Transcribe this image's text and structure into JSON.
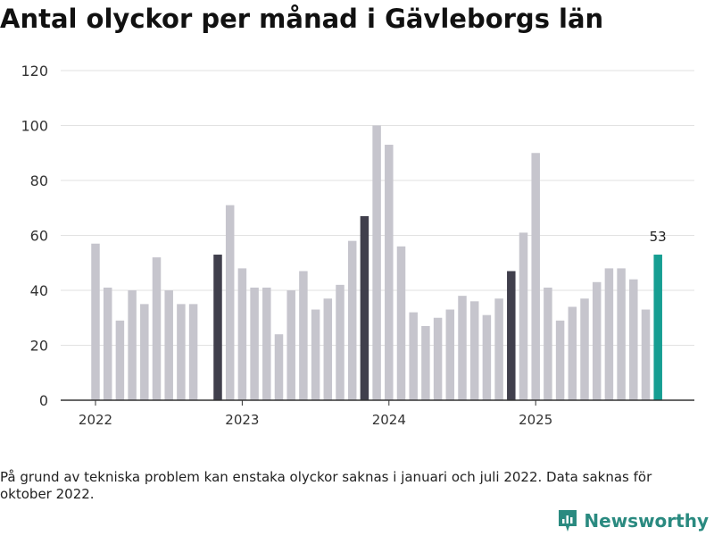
{
  "title": "Antal olyckor per månad i Gävleborgs län",
  "note": "På grund av tekniska problem kan enstaka olyckor saknas i januari och juli 2022. Data saknas för oktober 2022.",
  "brand": "Newsworthy",
  "colors": {
    "default_bar": "#c6c5cd",
    "october_bar": "#403f4c",
    "latest_bar": "#169e92",
    "grid": "#e2e2e2",
    "axis": "#333333",
    "brand": "#2a8a80"
  },
  "chart_data": {
    "type": "bar",
    "title": "Antal olyckor per månad i Gävleborgs län",
    "xlabel": "",
    "ylabel": "",
    "ylim": [
      0,
      120
    ],
    "yticks": [
      "0",
      "20",
      "40",
      "60",
      "80",
      "100",
      "120"
    ],
    "ytick_values": [
      0,
      20,
      40,
      60,
      80,
      100,
      120
    ],
    "year_labels": [
      "2022",
      "2023",
      "2024",
      "2025"
    ],
    "year_label_months": [
      "2022-01",
      "2023-01",
      "2024-01",
      "2025-01"
    ],
    "categories": [
      "2022-01",
      "2022-02",
      "2022-03",
      "2022-04",
      "2022-05",
      "2022-06",
      "2022-07",
      "2022-08",
      "2022-09",
      "2022-10",
      "2022-11",
      "2022-12",
      "2023-01",
      "2023-02",
      "2023-03",
      "2023-04",
      "2023-05",
      "2023-06",
      "2023-07",
      "2023-08",
      "2023-09",
      "2023-10",
      "2023-11",
      "2023-12",
      "2024-01",
      "2024-02",
      "2024-03",
      "2024-04",
      "2024-05",
      "2024-06",
      "2024-07",
      "2024-08",
      "2024-09",
      "2024-10",
      "2024-11",
      "2024-12",
      "2025-01",
      "2025-02",
      "2025-03",
      "2025-04",
      "2025-05",
      "2025-06",
      "2025-07",
      "2025-08",
      "2025-09",
      "2025-10"
    ],
    "values": [
      57,
      41,
      29,
      40,
      35,
      52,
      40,
      35,
      35,
      null,
      53,
      71,
      48,
      41,
      41,
      24,
      40,
      47,
      33,
      37,
      42,
      58,
      67,
      100,
      93,
      56,
      32,
      27,
      30,
      33,
      38,
      36,
      31,
      37,
      47,
      61,
      90,
      41,
      29,
      34,
      37,
      43,
      48,
      48,
      44,
      33
    ],
    "highlight_october": [
      "2022-11",
      "2023-11",
      "2024-11"
    ],
    "latest_value_label": "53",
    "latest_month": "2025-11",
    "latest_value": 53
  }
}
